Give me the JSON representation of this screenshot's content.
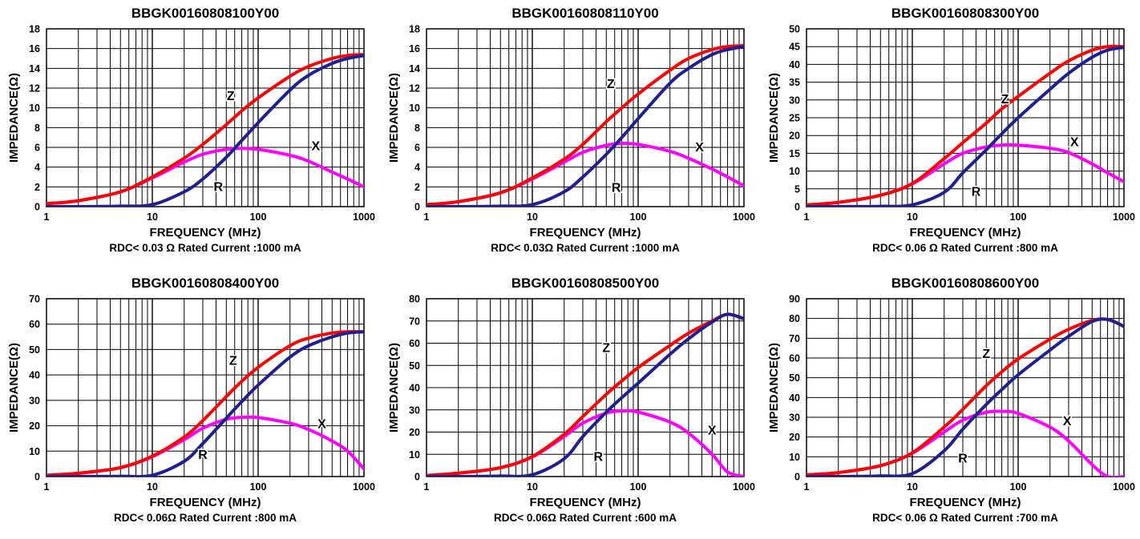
{
  "chart_data": [
    {
      "type": "line",
      "title": "BBGK00160808100Y00",
      "xlabel": "FREQUENCY (MHz)",
      "ylabel": "IMPEDANCE(Ω)",
      "subtitle": "RDC< 0.03 Ω Rated Current :1000 mA",
      "x_scale": "log",
      "xlim": [
        1,
        1000
      ],
      "ylim": [
        0,
        18
      ],
      "yticks": [
        0,
        2,
        4,
        6,
        8,
        10,
        12,
        14,
        16,
        18
      ],
      "xticks": [
        1,
        10,
        100,
        1000
      ],
      "grid": true,
      "x": [
        1,
        2,
        5,
        10,
        20,
        30,
        50,
        70,
        100,
        200,
        300,
        500,
        700,
        1000
      ],
      "series": [
        {
          "name": "Z",
          "color": "#ff0000",
          "values": [
            0.3,
            0.6,
            1.5,
            3.0,
            4.9,
            6.3,
            8.3,
            9.7,
            11.0,
            13.2,
            14.2,
            15.0,
            15.3,
            15.4
          ]
        },
        {
          "name": "R",
          "color": "#1f1f8f",
          "values": [
            0,
            0,
            0.05,
            0.2,
            1.5,
            2.8,
            5.0,
            6.7,
            8.5,
            11.8,
            13.3,
            14.5,
            15.0,
            15.3
          ]
        },
        {
          "name": "X",
          "color": "#ff00ff",
          "values": [
            0.3,
            0.6,
            1.5,
            2.9,
            4.5,
            5.3,
            5.8,
            5.9,
            5.8,
            5.2,
            4.6,
            3.5,
            2.8,
            2.0
          ]
        }
      ],
      "labels": [
        {
          "text": "Z",
          "x": 55,
          "y": 10.8
        },
        {
          "text": "R",
          "x": 42,
          "y": 1.6
        },
        {
          "text": "X",
          "x": 350,
          "y": 5.7
        }
      ]
    },
    {
      "type": "line",
      "title": "BBGK00160808110Y00",
      "xlabel": "FREQUENCY (MHz)",
      "ylabel": "IMPEDANCE(Ω)",
      "subtitle": "RDC< 0.03Ω Rated Current :1000 mA",
      "x_scale": "log",
      "xlim": [
        1,
        1000
      ],
      "ylim": [
        0,
        18
      ],
      "yticks": [
        0,
        2,
        4,
        6,
        8,
        10,
        12,
        14,
        16,
        18
      ],
      "xticks": [
        1,
        10,
        100,
        1000
      ],
      "grid": true,
      "x": [
        1,
        2,
        5,
        10,
        20,
        30,
        50,
        70,
        100,
        200,
        300,
        500,
        700,
        1000
      ],
      "series": [
        {
          "name": "Z",
          "color": "#ff0000",
          "values": [
            0.2,
            0.5,
            1.4,
            2.9,
            4.8,
            6.3,
            8.6,
            10.0,
            11.4,
            13.8,
            15.0,
            15.9,
            16.2,
            16.3
          ]
        },
        {
          "name": "R",
          "color": "#1f1f8f",
          "values": [
            0,
            0,
            0.05,
            0.2,
            1.5,
            3.0,
            5.3,
            7.0,
            8.9,
            12.5,
            14.0,
            15.4,
            15.9,
            16.2
          ]
        },
        {
          "name": "X",
          "color": "#ff00ff",
          "values": [
            0.2,
            0.5,
            1.4,
            2.8,
            4.5,
            5.5,
            6.2,
            6.4,
            6.3,
            5.6,
            4.9,
            3.8,
            3.0,
            2.1
          ]
        }
      ],
      "labels": [
        {
          "text": "Z",
          "x": 55,
          "y": 12.0
        },
        {
          "text": "R",
          "x": 62,
          "y": 1.5
        },
        {
          "text": "X",
          "x": 380,
          "y": 5.6
        }
      ]
    },
    {
      "type": "line",
      "title": "BBGK00160808300Y00",
      "xlabel": "FREQUENCY (MHz)",
      "ylabel": "IMPEDANCE(Ω)",
      "subtitle": "RDC< 0.06 Ω Rated Current :800 mA",
      "x_scale": "log",
      "xlim": [
        1,
        1000
      ],
      "ylim": [
        0,
        50
      ],
      "yticks": [
        0,
        5,
        10,
        15,
        20,
        25,
        30,
        35,
        40,
        45,
        50
      ],
      "xticks": [
        1,
        10,
        100,
        1000
      ],
      "grid": true,
      "x": [
        1,
        2,
        5,
        10,
        20,
        30,
        50,
        70,
        100,
        200,
        300,
        500,
        700,
        1000
      ],
      "series": [
        {
          "name": "Z",
          "color": "#ff0000",
          "values": [
            0.5,
            1.2,
            3.2,
            6.5,
            13.5,
            18.0,
            23.5,
            27.5,
            31.0,
            37.5,
            41.0,
            44.0,
            45.0,
            45.0
          ]
        },
        {
          "name": "R",
          "color": "#1f1f8f",
          "values": [
            0,
            0,
            0.1,
            0.5,
            4.0,
            9.5,
            16.0,
            20.5,
            25.0,
            33.0,
            37.5,
            42.0,
            44.0,
            44.8
          ]
        },
        {
          "name": "X",
          "color": "#ff00ff",
          "values": [
            0.5,
            1.2,
            3.2,
            6.4,
            12.0,
            15.0,
            16.8,
            17.3,
            17.3,
            16.4,
            15.2,
            12.0,
            9.5,
            7.0
          ]
        }
      ],
      "labels": [
        {
          "text": "Z",
          "x": 75,
          "y": 29.0
        },
        {
          "text": "R",
          "x": 40,
          "y": 3.0
        },
        {
          "text": "X",
          "x": 340,
          "y": 17.0
        }
      ]
    },
    {
      "type": "line",
      "title": "BBGK00160808400Y00",
      "xlabel": "FREQUENCY (MHz)",
      "ylabel": "IMPEDANCE(Ω)",
      "subtitle": "RDC< 0.06Ω Rated Current :800 mA",
      "x_scale": "log",
      "xlim": [
        1,
        1000
      ],
      "ylim": [
        0,
        70
      ],
      "yticks": [
        0,
        10,
        20,
        30,
        40,
        50,
        60,
        70
      ],
      "xticks": [
        1,
        10,
        100,
        1000
      ],
      "grid": true,
      "x": [
        1,
        2,
        5,
        10,
        20,
        30,
        50,
        70,
        100,
        200,
        300,
        500,
        700,
        1000
      ],
      "series": [
        {
          "name": "Z",
          "color": "#ff0000",
          "values": [
            0.5,
            1.3,
            3.5,
            8.0,
            15.5,
            22.0,
            31.5,
            37.5,
            43.0,
            51.5,
            54.5,
            56.5,
            57.0,
            57.0
          ]
        },
        {
          "name": "R",
          "color": "#1f1f8f",
          "values": [
            0,
            0,
            0.1,
            0.5,
            6.0,
            13.0,
            23.0,
            29.5,
            36.0,
            47.0,
            51.5,
            55.0,
            56.5,
            57.0
          ]
        },
        {
          "name": "X",
          "color": "#ff00ff",
          "values": [
            0.5,
            1.3,
            3.5,
            7.8,
            14.5,
            19.0,
            22.5,
            23.3,
            23.2,
            21.0,
            18.5,
            14.0,
            10.0,
            3.0
          ]
        }
      ],
      "labels": [
        {
          "text": "Z",
          "x": 58,
          "y": 44.0
        },
        {
          "text": "R",
          "x": 30,
          "y": 7.0
        },
        {
          "text": "X",
          "x": 400,
          "y": 19.0
        }
      ]
    },
    {
      "type": "line",
      "title": "BBGK00160808500Y00",
      "xlabel": "FREQUENCY (MHz)",
      "ylabel": "IMPEDANCE(Ω)",
      "subtitle": "RDC< 0.06Ω Rated Current :600 mA",
      "x_scale": "log",
      "xlim": [
        1,
        1000
      ],
      "ylim": [
        0,
        80
      ],
      "yticks": [
        0,
        10,
        20,
        30,
        40,
        50,
        60,
        70,
        80
      ],
      "xticks": [
        1,
        10,
        100,
        1000
      ],
      "grid": true,
      "x": [
        1,
        2,
        5,
        10,
        20,
        30,
        50,
        70,
        100,
        200,
        300,
        500,
        700,
        1000
      ],
      "series": [
        {
          "name": "Z",
          "color": "#ff0000",
          "values": [
            0.5,
            1.5,
            4.0,
            9.0,
            19.0,
            27.0,
            37.0,
            43.0,
            49.0,
            59.0,
            64.5,
            70.0,
            73.0,
            71.0
          ]
        },
        {
          "name": "R",
          "color": "#1f1f8f",
          "values": [
            0,
            0,
            0.2,
            0.8,
            8.0,
            18.0,
            29.0,
            35.5,
            42.0,
            55.0,
            62.0,
            69.5,
            73.0,
            71.0
          ]
        },
        {
          "name": "X",
          "color": "#ff00ff",
          "values": [
            0.5,
            1.5,
            4.0,
            8.8,
            18.0,
            24.0,
            28.5,
            29.5,
            29.0,
            24.5,
            19.5,
            10.0,
            2.0,
            0
          ]
        }
      ],
      "labels": [
        {
          "text": "Z",
          "x": 50,
          "y": 56.0
        },
        {
          "text": "R",
          "x": 42,
          "y": 7.0
        },
        {
          "text": "X",
          "x": 500,
          "y": 19.0
        }
      ]
    },
    {
      "type": "line",
      "title": "BBGK00160808600Y00",
      "xlabel": "FREQUENCY (MHz)",
      "ylabel": "IMPEDANCE(Ω)",
      "subtitle": "RDC< 0.06 Ω Rated Current :700 mA",
      "x_scale": "log",
      "xlim": [
        1,
        1000
      ],
      "ylim": [
        0,
        90
      ],
      "yticks": [
        0,
        10,
        20,
        30,
        40,
        50,
        60,
        70,
        80,
        90
      ],
      "xticks": [
        1,
        10,
        100,
        1000
      ],
      "grid": true,
      "x": [
        1,
        2,
        5,
        10,
        20,
        30,
        50,
        70,
        100,
        200,
        300,
        500,
        700,
        1000
      ],
      "series": [
        {
          "name": "Z",
          "color": "#ff0000",
          "values": [
            0.8,
            2.0,
            5.5,
            12.0,
            25.0,
            34.0,
            46.0,
            53.0,
            59.5,
            69.5,
            74.5,
            79.0,
            79.5,
            76.0
          ]
        },
        {
          "name": "R",
          "color": "#1f1f8f",
          "values": [
            0,
            0,
            0.3,
            1.5,
            13.0,
            24.0,
            36.5,
            44.0,
            51.5,
            64.0,
            71.0,
            78.5,
            79.5,
            76.0
          ]
        },
        {
          "name": "X",
          "color": "#ff00ff",
          "values": [
            0.8,
            2.0,
            5.5,
            11.8,
            22.5,
            28.5,
            32.5,
            33.0,
            32.0,
            25.0,
            18.0,
            6.0,
            0,
            0
          ]
        }
      ],
      "labels": [
        {
          "text": "Z",
          "x": 50,
          "y": 60.0
        },
        {
          "text": "R",
          "x": 30,
          "y": 7.0
        },
        {
          "text": "X",
          "x": 290,
          "y": 26.0
        }
      ]
    }
  ]
}
